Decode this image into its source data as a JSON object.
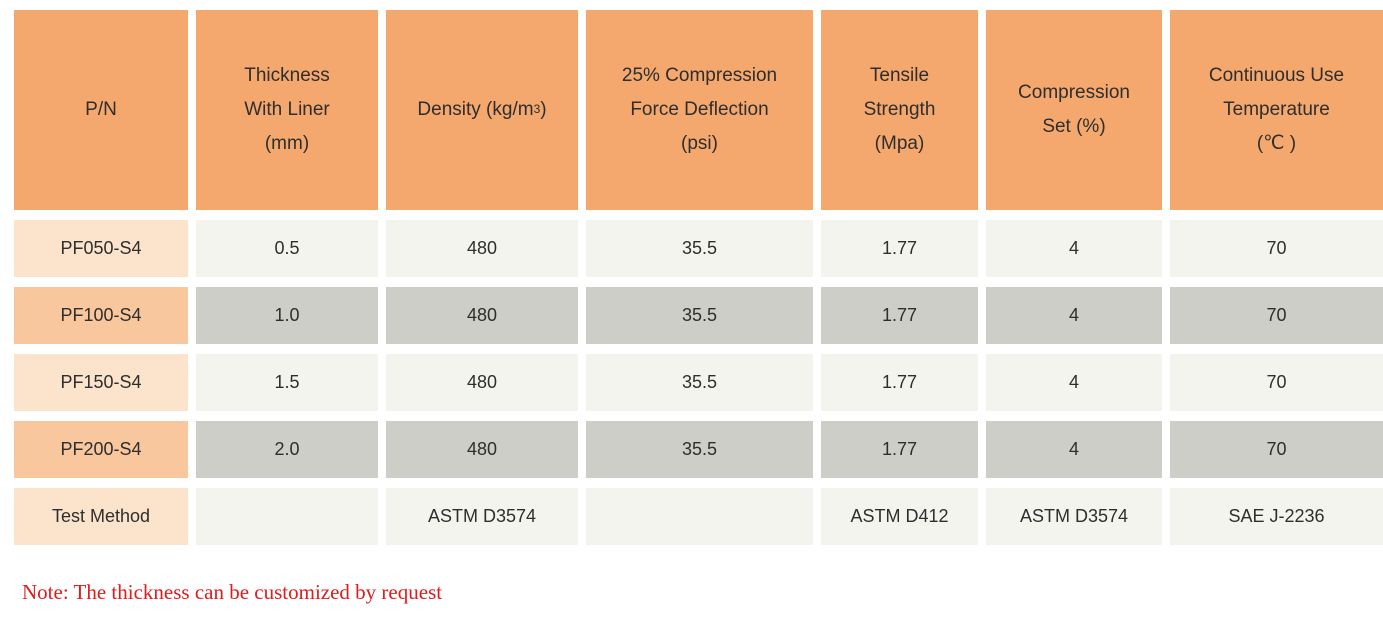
{
  "colors": {
    "header_orange": "#F4A86E",
    "row_label_peach": "#FCE3CC",
    "row_label_orange": "#F8C79D",
    "row_gray_light": "#F4F4EF",
    "row_gray_mid": "#CDCEC7",
    "note_red": "#E01B1B"
  },
  "table": {
    "header": {
      "pn": "P/N",
      "thickness": "Thickness\nWith Liner\n(mm)",
      "density_prefix": "Density (kg/m",
      "density_sup": "3",
      "density_suffix": " )",
      "cfd": "25% Compression\nForce Deflection\n(psi)",
      "tensile": "Tensile\nStrength\n(Mpa)",
      "compression_set": "Compression\nSet (%)",
      "temperature": "Continuous Use\nTemperature\n(℃ )"
    },
    "rows": [
      {
        "pn": "PF050-S4",
        "thickness": "0.5",
        "density": "480",
        "cfd": "35.5",
        "tensile": "1.77",
        "set": "4",
        "temp": "70"
      },
      {
        "pn": "PF100-S4",
        "thickness": "1.0",
        "density": "480",
        "cfd": "35.5",
        "tensile": "1.77",
        "set": "4",
        "temp": "70"
      },
      {
        "pn": "PF150-S4",
        "thickness": "1.5",
        "density": "480",
        "cfd": "35.5",
        "tensile": "1.77",
        "set": "4",
        "temp": "70"
      },
      {
        "pn": "PF200-S4",
        "thickness": "2.0",
        "density": "480",
        "cfd": "35.5",
        "tensile": "1.77",
        "set": "4",
        "temp": "70"
      }
    ],
    "test_method": {
      "label": "Test Method",
      "thickness": "",
      "density": "ASTM D3574",
      "cfd": "",
      "tensile": "ASTM D412",
      "set": "ASTM D3574",
      "temp": "SAE J-2236"
    }
  },
  "note": "Note: The thickness can be customized by request"
}
